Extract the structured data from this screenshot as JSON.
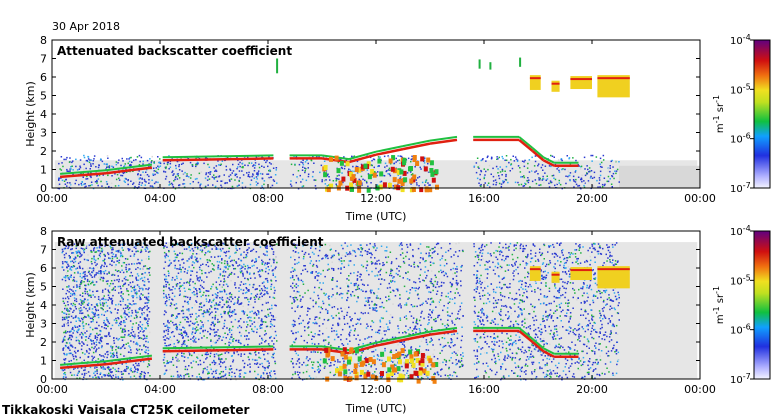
{
  "date": "30 Apr 2018",
  "footer": "Tikkakoski Vaisala CT25K ceilometer",
  "chart_data": [
    {
      "type": "heatmap",
      "title": "Attenuated backscatter coefficient",
      "xlabel": "Time (UTC)",
      "ylabel": "Height (km)",
      "x_ticks": [
        "00:00",
        "04:00",
        "08:00",
        "12:00",
        "16:00",
        "20:00",
        "00:00"
      ],
      "y_ticks": [
        "0",
        "1",
        "2",
        "3",
        "4",
        "5",
        "6",
        "7",
        "8"
      ],
      "xlim_hours": [
        0,
        24
      ],
      "ylim_km": [
        0,
        8
      ],
      "colorbar": {
        "ticks": [
          "10-7",
          "10-6",
          "10-5",
          "10-4"
        ],
        "unit_label": "m-1 sr-1",
        "scale": "log"
      }
    },
    {
      "type": "heatmap",
      "title": "Raw attenuated backscatter coefficient",
      "xlabel": "Time (UTC)",
      "ylabel": "Height (km)",
      "x_ticks": [
        "00:00",
        "04:00",
        "08:00",
        "12:00",
        "16:00",
        "20:00",
        "00:00"
      ],
      "y_ticks": [
        "0",
        "1",
        "2",
        "3",
        "4",
        "5",
        "6",
        "7",
        "8"
      ],
      "xlim_hours": [
        0,
        24
      ],
      "ylim_km": [
        0,
        8
      ],
      "colorbar": {
        "ticks": [
          "10-7",
          "10-6",
          "10-5",
          "10-4"
        ],
        "unit_label": "m-1 sr-1",
        "scale": "log"
      }
    }
  ],
  "colors": {
    "background_noise": "#d8d8d8",
    "low": "#2040c0",
    "mid": "#20c040",
    "high": "#e8e020",
    "peak": "#d01010"
  }
}
